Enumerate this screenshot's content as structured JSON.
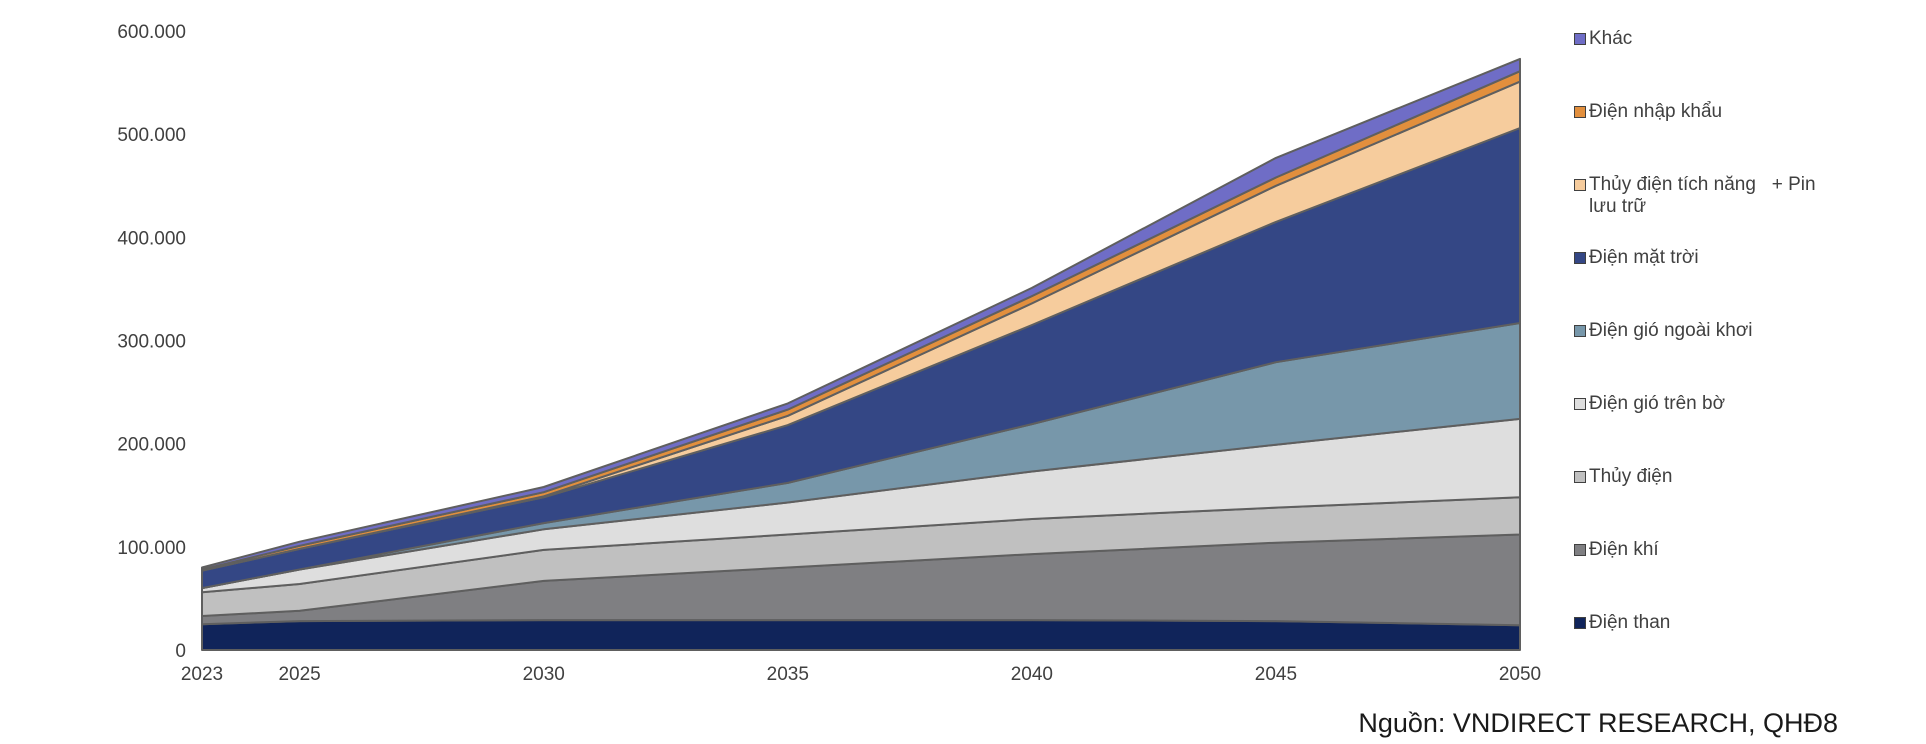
{
  "chart_data": {
    "type": "area",
    "stacked": true,
    "x": [
      2023,
      2025,
      2030,
      2035,
      2040,
      2045,
      2050
    ],
    "ylim": [
      0,
      600000
    ],
    "yticks": [
      "0",
      "100.000",
      "200.000",
      "300.000",
      "400.000",
      "500.000",
      "600.000"
    ],
    "xticks": [
      "2023",
      "2025",
      "2030",
      "2035",
      "2040",
      "2045",
      "2050"
    ],
    "legend_position": "right",
    "grid": false,
    "series": [
      {
        "name": "Điện than",
        "color": "#10245a",
        "values": [
          25000,
          28000,
          29000,
          29000,
          29000,
          28000,
          24000
        ]
      },
      {
        "name": "Điện khí",
        "color": "#7f7f82",
        "values": [
          8000,
          10000,
          38000,
          51000,
          64000,
          76000,
          88000
        ]
      },
      {
        "name": "Thủy điện",
        "color": "#c0c0c0",
        "values": [
          23000,
          26000,
          30000,
          32000,
          34000,
          34000,
          36000
        ]
      },
      {
        "name": "Điện gió trên bờ",
        "color": "#dedede",
        "values": [
          4000,
          14000,
          20000,
          31000,
          46000,
          61000,
          76000
        ]
      },
      {
        "name": "Điện gió ngoài khơi",
        "color": "#7797aa",
        "values": [
          0,
          0,
          6000,
          19000,
          46000,
          80000,
          93000
        ]
      },
      {
        "name": "Điện mặt trời",
        "color": "#344785",
        "values": [
          17000,
          20000,
          25000,
          56000,
          96000,
          136000,
          189000
        ]
      },
      {
        "name": "Thủy điện tích năng + Pin lưu trữ",
        "color": "#f6cc9d",
        "values": [
          0,
          0,
          1000,
          9000,
          21000,
          35000,
          45000
        ]
      },
      {
        "name": "Điện nhập khẩu",
        "color": "#e28f3d",
        "values": [
          1000,
          3000,
          4000,
          6000,
          7000,
          8000,
          10000
        ]
      },
      {
        "name": "Khác",
        "color": "#6f6dc6",
        "values": [
          2000,
          4000,
          5000,
          6000,
          8000,
          19000,
          12000
        ]
      }
    ]
  },
  "legend": [
    {
      "label": "Khác",
      "color": "#6f6dc6"
    },
    {
      "label": "Điện nhập khẩu",
      "color": "#e28f3d"
    },
    {
      "label": "Thủy điện tích năng   + Pin lưu trữ",
      "color": "#f6cc9d"
    },
    {
      "label": "Điện mặt trời",
      "color": "#344785"
    },
    {
      "label": "Điện gió ngoài khơi",
      "color": "#7797aa"
    },
    {
      "label": "Điện gió trên bờ",
      "color": "#dedede"
    },
    {
      "label": "Thủy điện",
      "color": "#c0c0c0"
    },
    {
      "label": "Điện khí",
      "color": "#7f7f82"
    },
    {
      "label": "Điện than",
      "color": "#10245a"
    }
  ],
  "source": "Nguồn: VNDIRECT RESEARCH, QHĐ8"
}
